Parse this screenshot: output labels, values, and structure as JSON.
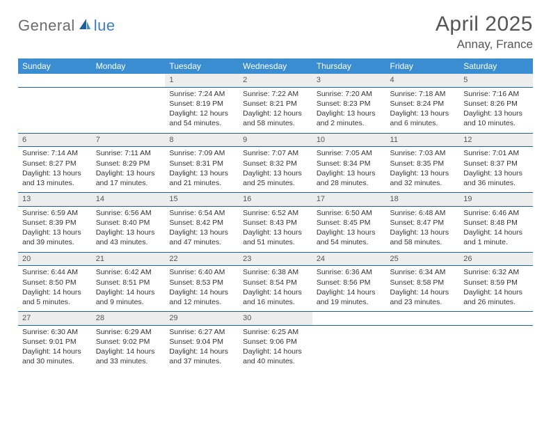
{
  "logo": {
    "text1": "General",
    "text2": "lue"
  },
  "title": "April 2025",
  "location": "Annay, France",
  "header_bg": "#3a8dd0",
  "header_fg": "#ffffff",
  "rule_color": "#1e5f9e",
  "daynum_bg": "#ededed",
  "columns": [
    "Sunday",
    "Monday",
    "Tuesday",
    "Wednesday",
    "Thursday",
    "Friday",
    "Saturday"
  ],
  "weeks": [
    [
      null,
      null,
      {
        "n": "1",
        "sr": "7:24 AM",
        "ss": "8:19 PM",
        "dl": "12 hours and 54 minutes."
      },
      {
        "n": "2",
        "sr": "7:22 AM",
        "ss": "8:21 PM",
        "dl": "12 hours and 58 minutes."
      },
      {
        "n": "3",
        "sr": "7:20 AM",
        "ss": "8:23 PM",
        "dl": "13 hours and 2 minutes."
      },
      {
        "n": "4",
        "sr": "7:18 AM",
        "ss": "8:24 PM",
        "dl": "13 hours and 6 minutes."
      },
      {
        "n": "5",
        "sr": "7:16 AM",
        "ss": "8:26 PM",
        "dl": "13 hours and 10 minutes."
      }
    ],
    [
      {
        "n": "6",
        "sr": "7:14 AM",
        "ss": "8:27 PM",
        "dl": "13 hours and 13 minutes."
      },
      {
        "n": "7",
        "sr": "7:11 AM",
        "ss": "8:29 PM",
        "dl": "13 hours and 17 minutes."
      },
      {
        "n": "8",
        "sr": "7:09 AM",
        "ss": "8:31 PM",
        "dl": "13 hours and 21 minutes."
      },
      {
        "n": "9",
        "sr": "7:07 AM",
        "ss": "8:32 PM",
        "dl": "13 hours and 25 minutes."
      },
      {
        "n": "10",
        "sr": "7:05 AM",
        "ss": "8:34 PM",
        "dl": "13 hours and 28 minutes."
      },
      {
        "n": "11",
        "sr": "7:03 AM",
        "ss": "8:35 PM",
        "dl": "13 hours and 32 minutes."
      },
      {
        "n": "12",
        "sr": "7:01 AM",
        "ss": "8:37 PM",
        "dl": "13 hours and 36 minutes."
      }
    ],
    [
      {
        "n": "13",
        "sr": "6:59 AM",
        "ss": "8:39 PM",
        "dl": "13 hours and 39 minutes."
      },
      {
        "n": "14",
        "sr": "6:56 AM",
        "ss": "8:40 PM",
        "dl": "13 hours and 43 minutes."
      },
      {
        "n": "15",
        "sr": "6:54 AM",
        "ss": "8:42 PM",
        "dl": "13 hours and 47 minutes."
      },
      {
        "n": "16",
        "sr": "6:52 AM",
        "ss": "8:43 PM",
        "dl": "13 hours and 51 minutes."
      },
      {
        "n": "17",
        "sr": "6:50 AM",
        "ss": "8:45 PM",
        "dl": "13 hours and 54 minutes."
      },
      {
        "n": "18",
        "sr": "6:48 AM",
        "ss": "8:47 PM",
        "dl": "13 hours and 58 minutes."
      },
      {
        "n": "19",
        "sr": "6:46 AM",
        "ss": "8:48 PM",
        "dl": "14 hours and 1 minute."
      }
    ],
    [
      {
        "n": "20",
        "sr": "6:44 AM",
        "ss": "8:50 PM",
        "dl": "14 hours and 5 minutes."
      },
      {
        "n": "21",
        "sr": "6:42 AM",
        "ss": "8:51 PM",
        "dl": "14 hours and 9 minutes."
      },
      {
        "n": "22",
        "sr": "6:40 AM",
        "ss": "8:53 PM",
        "dl": "14 hours and 12 minutes."
      },
      {
        "n": "23",
        "sr": "6:38 AM",
        "ss": "8:54 PM",
        "dl": "14 hours and 16 minutes."
      },
      {
        "n": "24",
        "sr": "6:36 AM",
        "ss": "8:56 PM",
        "dl": "14 hours and 19 minutes."
      },
      {
        "n": "25",
        "sr": "6:34 AM",
        "ss": "8:58 PM",
        "dl": "14 hours and 23 minutes."
      },
      {
        "n": "26",
        "sr": "6:32 AM",
        "ss": "8:59 PM",
        "dl": "14 hours and 26 minutes."
      }
    ],
    [
      {
        "n": "27",
        "sr": "6:30 AM",
        "ss": "9:01 PM",
        "dl": "14 hours and 30 minutes."
      },
      {
        "n": "28",
        "sr": "6:29 AM",
        "ss": "9:02 PM",
        "dl": "14 hours and 33 minutes."
      },
      {
        "n": "29",
        "sr": "6:27 AM",
        "ss": "9:04 PM",
        "dl": "14 hours and 37 minutes."
      },
      {
        "n": "30",
        "sr": "6:25 AM",
        "ss": "9:06 PM",
        "dl": "14 hours and 40 minutes."
      },
      null,
      null,
      null
    ]
  ],
  "labels": {
    "sunrise": "Sunrise:",
    "sunset": "Sunset:",
    "daylight": "Daylight:"
  }
}
